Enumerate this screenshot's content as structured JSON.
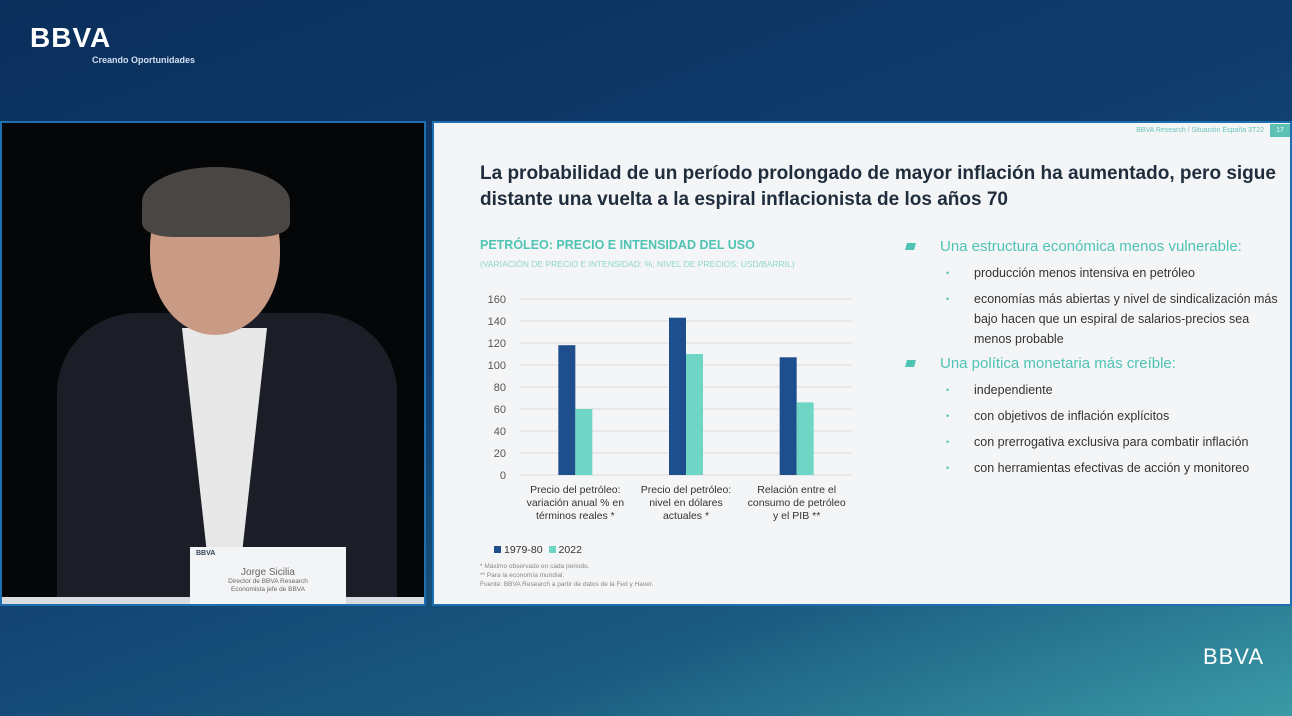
{
  "brand": {
    "logo": "BBVA",
    "tagline": "Creando Oportunidades",
    "logo_bottom": "BBVA"
  },
  "nameplate": {
    "logo": "BBVA",
    "name": "Jorge Sicilia",
    "line1": "Director de BBVA Research",
    "line2": "Economista jefe de BBVA"
  },
  "slide": {
    "ref": "BBVA Research / Situación España 3T22",
    "page": "17",
    "title": "La probabilidad de un período prolongado de mayor inflación ha aumentado, pero sigue distante una vuelta a la espiral inflacionista de los años 70",
    "notes": [
      "* Máximo observado en  cada periodo.",
      "** Para la economía mundial.",
      "Fuente: BBVA Research a partir de datos de la Fed y Haver."
    ],
    "sections": [
      {
        "heading": "Una estructura económica menos vulnerable:",
        "items": [
          "producción menos intensiva en petróleo",
          "economías más abiertas y nivel de sindicalización más bajo hacen que un espiral de salarios-precios sea menos probable"
        ]
      },
      {
        "heading": "Una política monetaria más creíble:",
        "items": [
          "independiente",
          "con objetivos de inflación explícitos",
          "con prerrogativa exclusiva para combatir inflación",
          "con herramientas efectivas de acción y monitoreo"
        ]
      }
    ]
  },
  "chart_data": {
    "type": "bar",
    "title": "PETRÓLEO: PRECIO E INTENSIDAD DEL USO",
    "subtitle": "(VARIACIÓN DE PRECIO E INTENSIDAD: %; NIVEL DE PRECIOS: USD/BARRIL)",
    "categories": [
      "Precio del petróleo: variación anual % en términos reales *",
      "Precio del petróleo: nivel en dólares actuales *",
      "Relación entre el consumo de petróleo y el PIB **"
    ],
    "series": [
      {
        "name": "1979-80",
        "values": [
          118,
          143,
          107
        ],
        "color": "#1f4e8c"
      },
      {
        "name": "2022",
        "values": [
          60,
          110,
          66
        ],
        "color": "#6fd6c6"
      }
    ],
    "ylim": [
      0,
      160
    ],
    "yticks": [
      0,
      20,
      40,
      60,
      80,
      100,
      120,
      140,
      160
    ],
    "grid": true,
    "legend": "bottom-left"
  }
}
